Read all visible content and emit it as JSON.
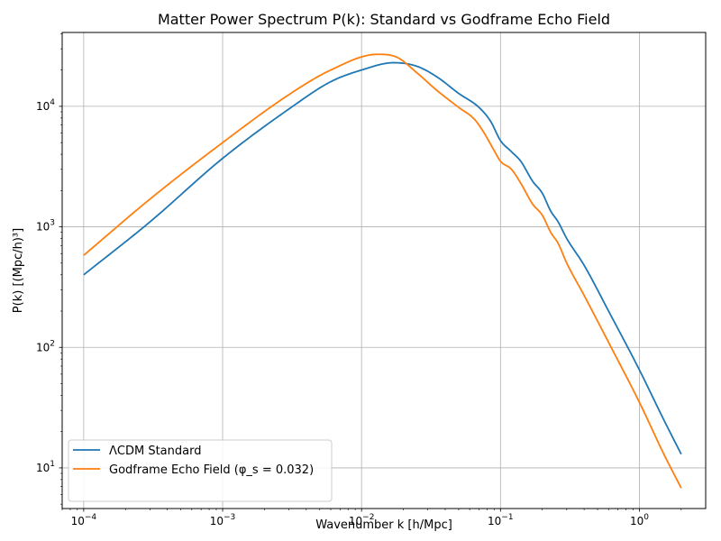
{
  "chart_data": {
    "type": "line",
    "title": "Matter Power Spectrum P(k): Standard vs Godframe Echo Field",
    "xlabel": "Wavenumber k [h/Mpc]",
    "ylabel": "P(k) [(Mpc/h)³]",
    "xscale": "log",
    "yscale": "log",
    "xlim": [
      7e-05,
      3
    ],
    "ylim": [
      4.6,
      41000
    ],
    "grid": true,
    "legend_position": "lower-left",
    "x_tick_labels": [
      {
        "base": "10",
        "exp": "−4",
        "value": 0.0001
      },
      {
        "base": "10",
        "exp": "−3",
        "value": 0.001
      },
      {
        "base": "10",
        "exp": "−2",
        "value": 0.01
      },
      {
        "base": "10",
        "exp": "−1",
        "value": 0.1
      },
      {
        "base": "10",
        "exp": "0",
        "value": 1
      }
    ],
    "y_tick_labels": [
      {
        "base": "10",
        "exp": "1",
        "value": 10
      },
      {
        "base": "10",
        "exp": "2",
        "value": 100
      },
      {
        "base": "10",
        "exp": "3",
        "value": 1000
      },
      {
        "base": "10",
        "exp": "4",
        "value": 10000
      }
    ],
    "series": [
      {
        "name": "ΛCDM Standard",
        "color": "#1f77b4",
        "x": [
          0.0001,
          0.0003,
          0.001,
          0.003,
          0.006,
          0.01,
          0.017,
          0.025,
          0.035,
          0.05,
          0.07,
          0.085,
          0.1,
          0.12,
          0.14,
          0.17,
          0.2,
          0.23,
          0.26,
          0.3,
          0.4,
          0.6,
          1.0,
          1.5,
          2.0
        ],
        "y": [
          400,
          1100,
          3700,
          9500,
          16000,
          20000,
          23000,
          21500,
          17500,
          12800,
          9800,
          7500,
          5200,
          4200,
          3500,
          2400,
          1900,
          1350,
          1100,
          800,
          480,
          200,
          65,
          25,
          13
        ]
      },
      {
        "name": "Godframe Echo Field (φ_s = 0.032)",
        "color": "#ff7f0e",
        "x": [
          0.0001,
          0.0003,
          0.001,
          0.003,
          0.006,
          0.013,
          0.018,
          0.025,
          0.035,
          0.05,
          0.065,
          0.075,
          0.09,
          0.1,
          0.12,
          0.14,
          0.17,
          0.2,
          0.23,
          0.26,
          0.3,
          0.4,
          0.6,
          1.0,
          1.5,
          2.0
        ],
        "y": [
          580,
          1700,
          5000,
          12500,
          20000,
          27000,
          25500,
          19000,
          13500,
          9800,
          7800,
          6200,
          4300,
          3500,
          3000,
          2300,
          1550,
          1250,
          900,
          730,
          500,
          270,
          110,
          35,
          13,
          6.8
        ]
      }
    ]
  }
}
